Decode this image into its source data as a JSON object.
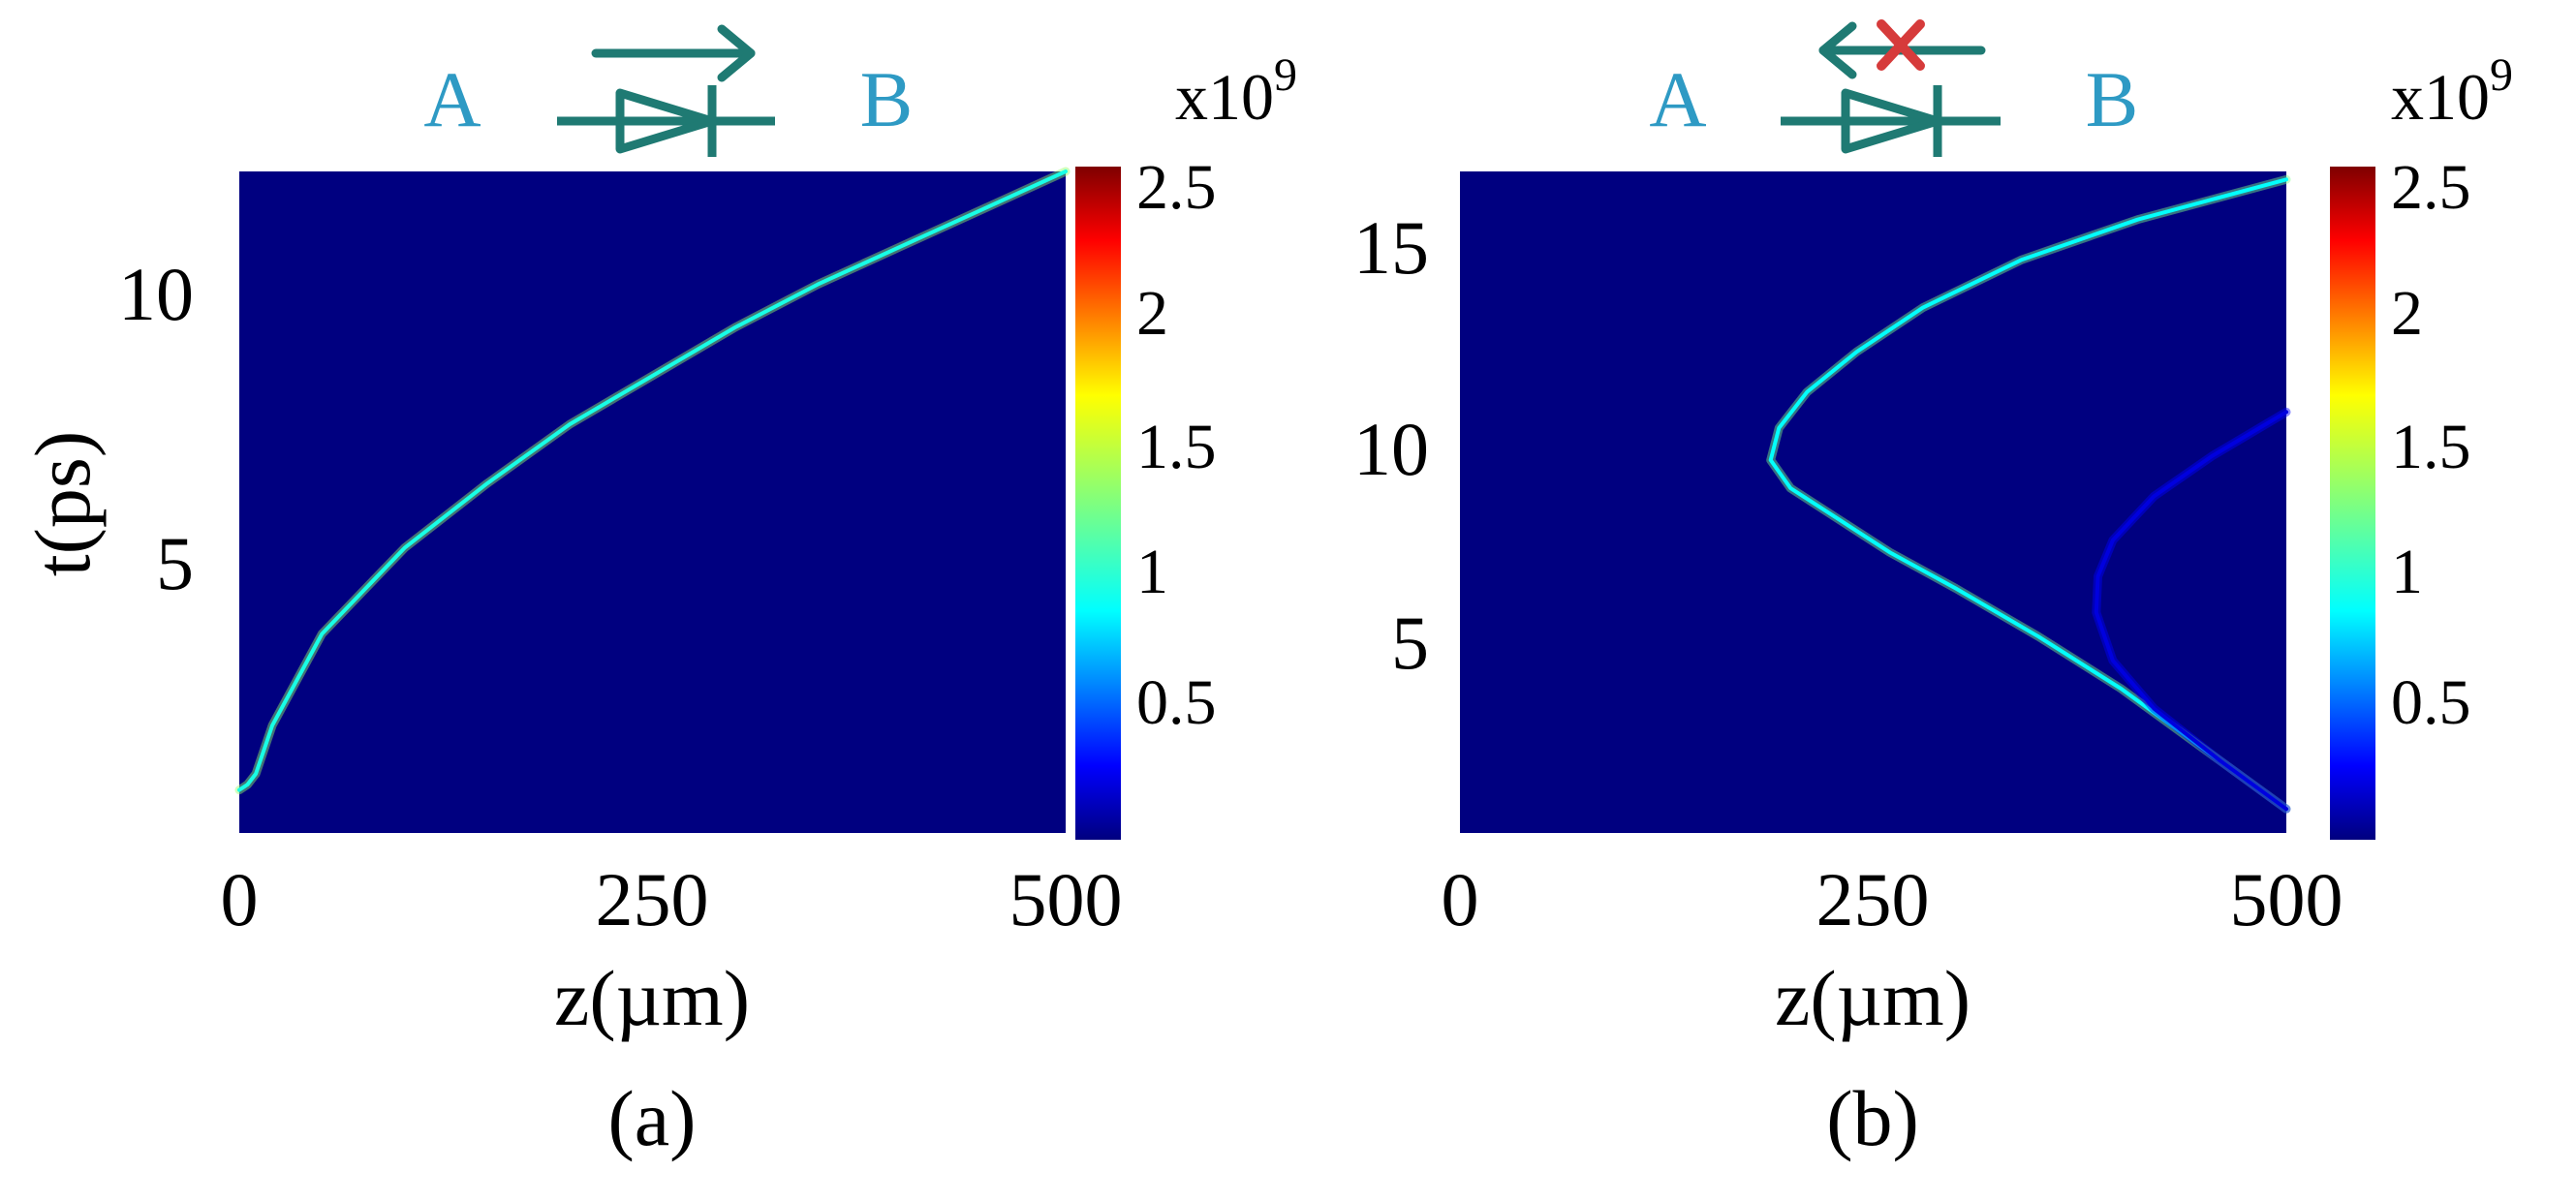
{
  "colors": {
    "background": "#ffffff",
    "plot_background": "#000080",
    "diode_symbol": "#1f7a73",
    "endpoint_label": "#2e9ac4",
    "blocked_mark": "#d63b3b",
    "text": "#000000"
  },
  "icons": {
    "diode": "diode-symbol-icon",
    "forward_arrow": "arrow-right-icon",
    "blocked_arrow": "arrow-left-blocked-icon",
    "blocked_mark": "x-mark-icon"
  },
  "chart_data": [
    {
      "type": "heatmap",
      "caption": "(a)",
      "xlabel": "z(µm)",
      "ylabel": "t(ps)",
      "xlim": [
        0,
        500
      ],
      "ylim": [
        0,
        12.3
      ],
      "x_ticks": [
        "0",
        "250",
        "500"
      ],
      "y_ticks": [
        "5",
        "10"
      ],
      "colorbar": {
        "multiplier": "x10",
        "exponent": "9",
        "range": [
          0,
          2.5
        ],
        "ticks": [
          "0.5",
          "1",
          "1.5",
          "2",
          "2.5"
        ],
        "colormap": "jet"
      },
      "schematic": {
        "left_label": "A",
        "right_label": "B",
        "arrow": "forward"
      },
      "series": [
        {
          "intensity": 0.95,
          "points": [
            [
              0,
              0.8
            ],
            [
              5,
              0.9
            ],
            [
              10,
              1.1
            ],
            [
              20,
              2.0
            ],
            [
              50,
              3.7
            ],
            [
              100,
              5.3
            ],
            [
              150,
              6.5
            ],
            [
              200,
              7.6
            ],
            [
              250,
              8.5
            ],
            [
              300,
              9.4
            ],
            [
              350,
              10.2
            ],
            [
              400,
              10.9
            ],
            [
              450,
              11.6
            ],
            [
              500,
              12.3
            ]
          ]
        }
      ]
    },
    {
      "type": "heatmap",
      "caption": "(b)",
      "xlabel": "z(µm)",
      "ylabel": "",
      "xlim": [
        0,
        500
      ],
      "ylim": [
        0,
        16.5
      ],
      "x_ticks": [
        "0",
        "250",
        "500"
      ],
      "y_ticks": [
        "5",
        "10",
        "15"
      ],
      "colorbar": {
        "multiplier": "x10",
        "exponent": "9",
        "range": [
          0,
          2.5
        ],
        "ticks": [
          "0.5",
          "1",
          "1.5",
          "2",
          "2.5"
        ],
        "colormap": "jet"
      },
      "schematic": {
        "left_label": "A",
        "right_label": "B",
        "arrow": "blocked"
      },
      "series": [
        {
          "intensity": 0.9,
          "points": [
            [
              500,
              0.6
            ],
            [
              450,
              2.1
            ],
            [
              400,
              3.6
            ],
            [
              350,
              4.9
            ],
            [
              300,
              6.1
            ],
            [
              260,
              7.0
            ],
            [
              230,
              7.8
            ],
            [
              200,
              8.6
            ],
            [
              188,
              9.3
            ],
            [
              193,
              10.1
            ],
            [
              210,
              11.0
            ],
            [
              240,
              12.0
            ],
            [
              280,
              13.1
            ],
            [
              340,
              14.3
            ],
            [
              410,
              15.3
            ],
            [
              500,
              16.3
            ]
          ]
        },
        {
          "intensity": 0.22,
          "points": [
            [
              500,
              0.6
            ],
            [
              460,
              1.8
            ],
            [
              420,
              3.1
            ],
            [
              395,
              4.3
            ],
            [
              385,
              5.5
            ],
            [
              386,
              6.4
            ],
            [
              395,
              7.3
            ],
            [
              420,
              8.4
            ],
            [
              455,
              9.4
            ],
            [
              500,
              10.5
            ]
          ]
        }
      ]
    }
  ]
}
